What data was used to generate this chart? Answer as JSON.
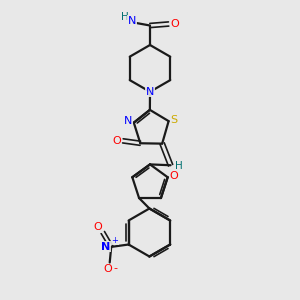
{
  "bg_color": "#e8e8e8",
  "bond_color": "#1a1a1a",
  "N_color": "#0000ff",
  "O_color": "#ff0000",
  "S_color": "#ccaa00",
  "H_color": "#007070",
  "figsize": [
    3.0,
    3.0
  ],
  "dpi": 100,
  "xlim": [
    0,
    10
  ],
  "ylim": [
    0,
    10
  ]
}
